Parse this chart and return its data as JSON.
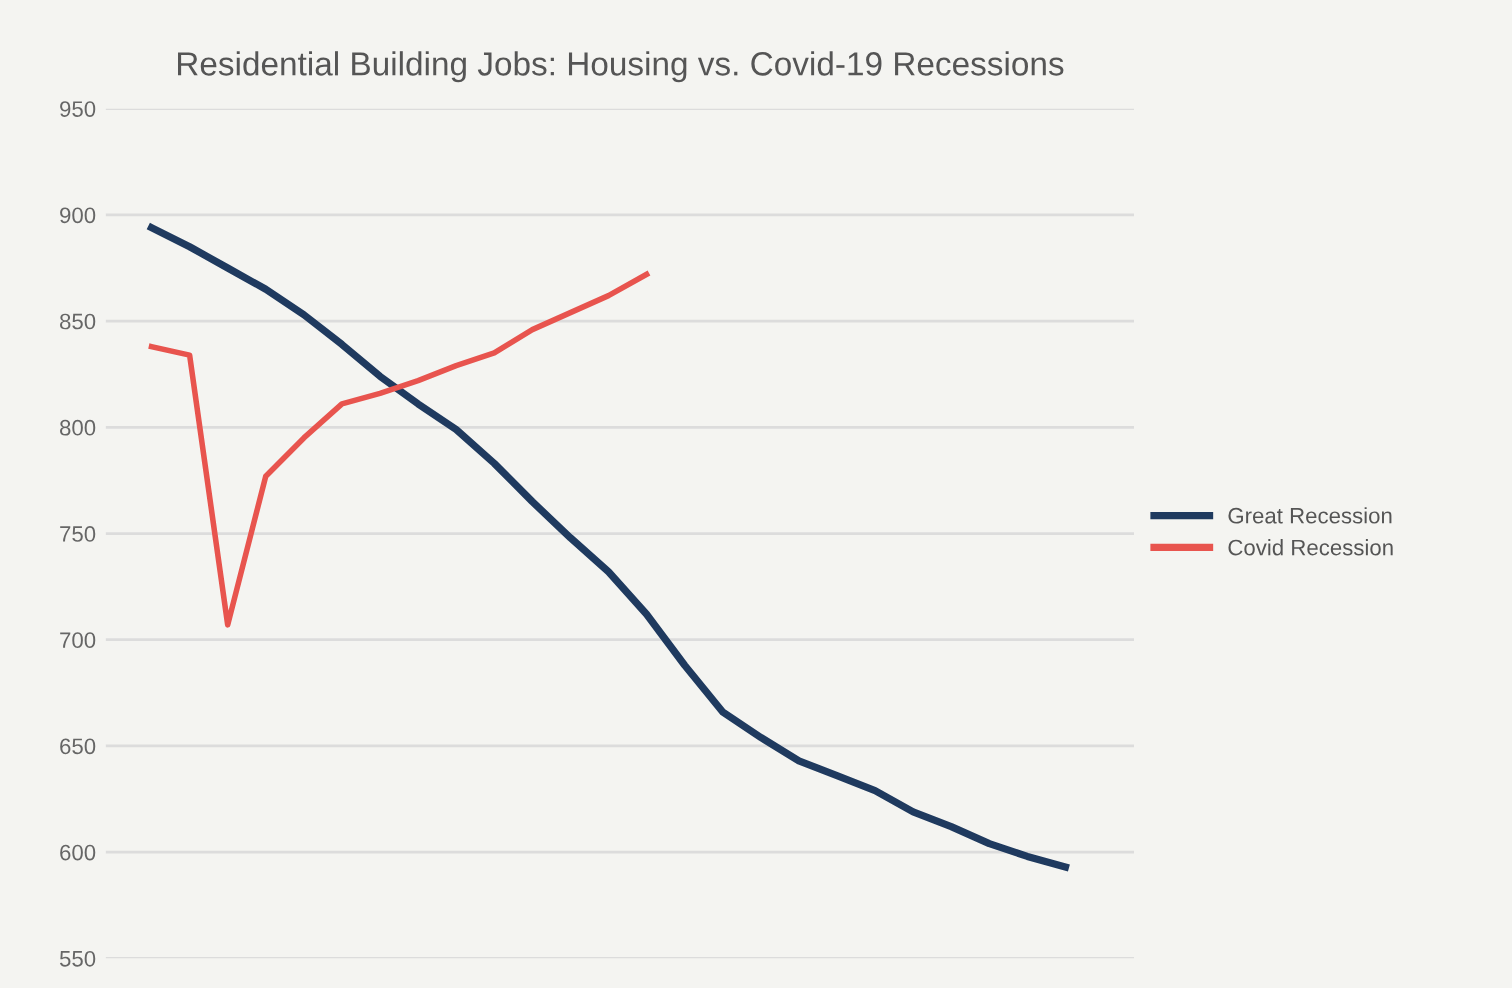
{
  "chart_data": {
    "type": "line",
    "title": "Residential Building Jobs: Housing vs. Covid-19 Recessions",
    "categories": [
      null,
      null,
      null,
      null,
      null,
      null,
      null,
      null,
      null,
      null,
      null,
      null,
      null,
      null,
      null,
      null,
      null,
      null,
      null,
      null,
      null,
      null,
      null,
      null,
      null
    ],
    "series": [
      {
        "name": "Great Recession",
        "color": "#1f3a5f",
        "values": [
          894,
          885,
          875,
          865,
          853,
          839,
          824,
          811,
          799,
          783,
          765,
          748,
          732,
          712,
          688,
          666,
          654,
          643,
          636,
          629,
          619,
          612,
          604,
          598,
          593
        ]
      },
      {
        "name": "Covid Recession",
        "color": "#e8544e",
        "values": [
          838,
          834,
          707,
          777,
          795,
          811,
          816,
          822,
          829,
          835,
          846,
          854,
          862,
          872,
          null,
          null,
          null,
          null,
          null,
          null,
          null,
          null,
          null,
          null,
          null
        ]
      }
    ],
    "ylim": [
      550,
      950
    ],
    "yticks": [
      550,
      600,
      650,
      700,
      750,
      800,
      850,
      900,
      950
    ],
    "grid": "y",
    "legend": "right",
    "marker": "none",
    "line_style": "solid"
  }
}
